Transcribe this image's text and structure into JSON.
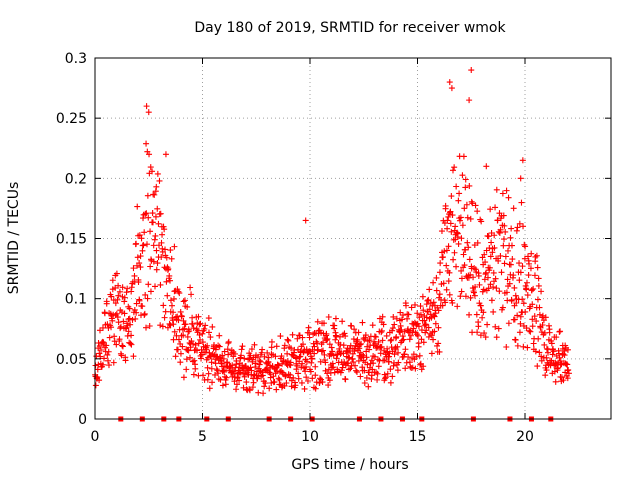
{
  "chart_data": {
    "type": "scatter",
    "title": "Day 180 of 2019, SRMTID for receiver wmok",
    "xlabel": "GPS time / hours",
    "ylabel": "SRMTID / TECUs",
    "xlim": [
      0,
      24
    ],
    "ylim": [
      0,
      0.3
    ],
    "x_ticks": [
      0,
      5,
      10,
      15,
      20
    ],
    "y_ticks": [
      0,
      0.05,
      0.1,
      0.15,
      0.2,
      0.25,
      0.3
    ],
    "x_tick_labels": [
      "0",
      "5",
      "10",
      "15",
      "20"
    ],
    "y_tick_labels": [
      "0",
      "0.05",
      "0.1",
      "0.15",
      "0.2",
      "0.25",
      "0.3"
    ],
    "grid": true,
    "marker": "+",
    "color": "#ff0000",
    "envelope": {
      "description": "approximate typical SRMTID level versus GPS hour",
      "x": [
        0,
        0.5,
        1.0,
        1.5,
        2.0,
        2.5,
        3.0,
        3.5,
        4.0,
        4.5,
        5.0,
        6.0,
        7.0,
        8.0,
        9.0,
        10.0,
        11.0,
        12.0,
        13.0,
        14.0,
        15.0,
        16.0,
        16.5,
        17.0,
        17.5,
        18.0,
        18.5,
        19.0,
        19.5,
        20.0,
        20.5,
        21.0,
        21.5,
        22.0
      ],
      "y": [
        0.035,
        0.07,
        0.085,
        0.075,
        0.12,
        0.16,
        0.14,
        0.1,
        0.075,
        0.07,
        0.06,
        0.045,
        0.04,
        0.04,
        0.045,
        0.05,
        0.055,
        0.05,
        0.055,
        0.06,
        0.07,
        0.09,
        0.14,
        0.15,
        0.13,
        0.11,
        0.12,
        0.13,
        0.11,
        0.115,
        0.09,
        0.06,
        0.05,
        0.045
      ]
    },
    "highlights": [
      {
        "x": 2.4,
        "y": 0.26
      },
      {
        "x": 2.5,
        "y": 0.255
      },
      {
        "x": 3.3,
        "y": 0.22
      },
      {
        "x": 9.8,
        "y": 0.165
      },
      {
        "x": 16.5,
        "y": 0.28
      },
      {
        "x": 16.6,
        "y": 0.275
      },
      {
        "x": 17.5,
        "y": 0.29
      },
      {
        "x": 17.4,
        "y": 0.265
      },
      {
        "x": 18.2,
        "y": 0.21
      },
      {
        "x": 19.9,
        "y": 0.215
      },
      {
        "x": 19.8,
        "y": 0.2
      }
    ],
    "zero_flags_x": [
      1.2,
      2.2,
      3.2,
      3.9,
      5.2,
      6.2,
      8.1,
      9.1,
      10.1,
      12.3,
      13.3,
      14.3,
      15.2,
      17.6,
      19.3,
      20.3,
      21.2
    ]
  }
}
